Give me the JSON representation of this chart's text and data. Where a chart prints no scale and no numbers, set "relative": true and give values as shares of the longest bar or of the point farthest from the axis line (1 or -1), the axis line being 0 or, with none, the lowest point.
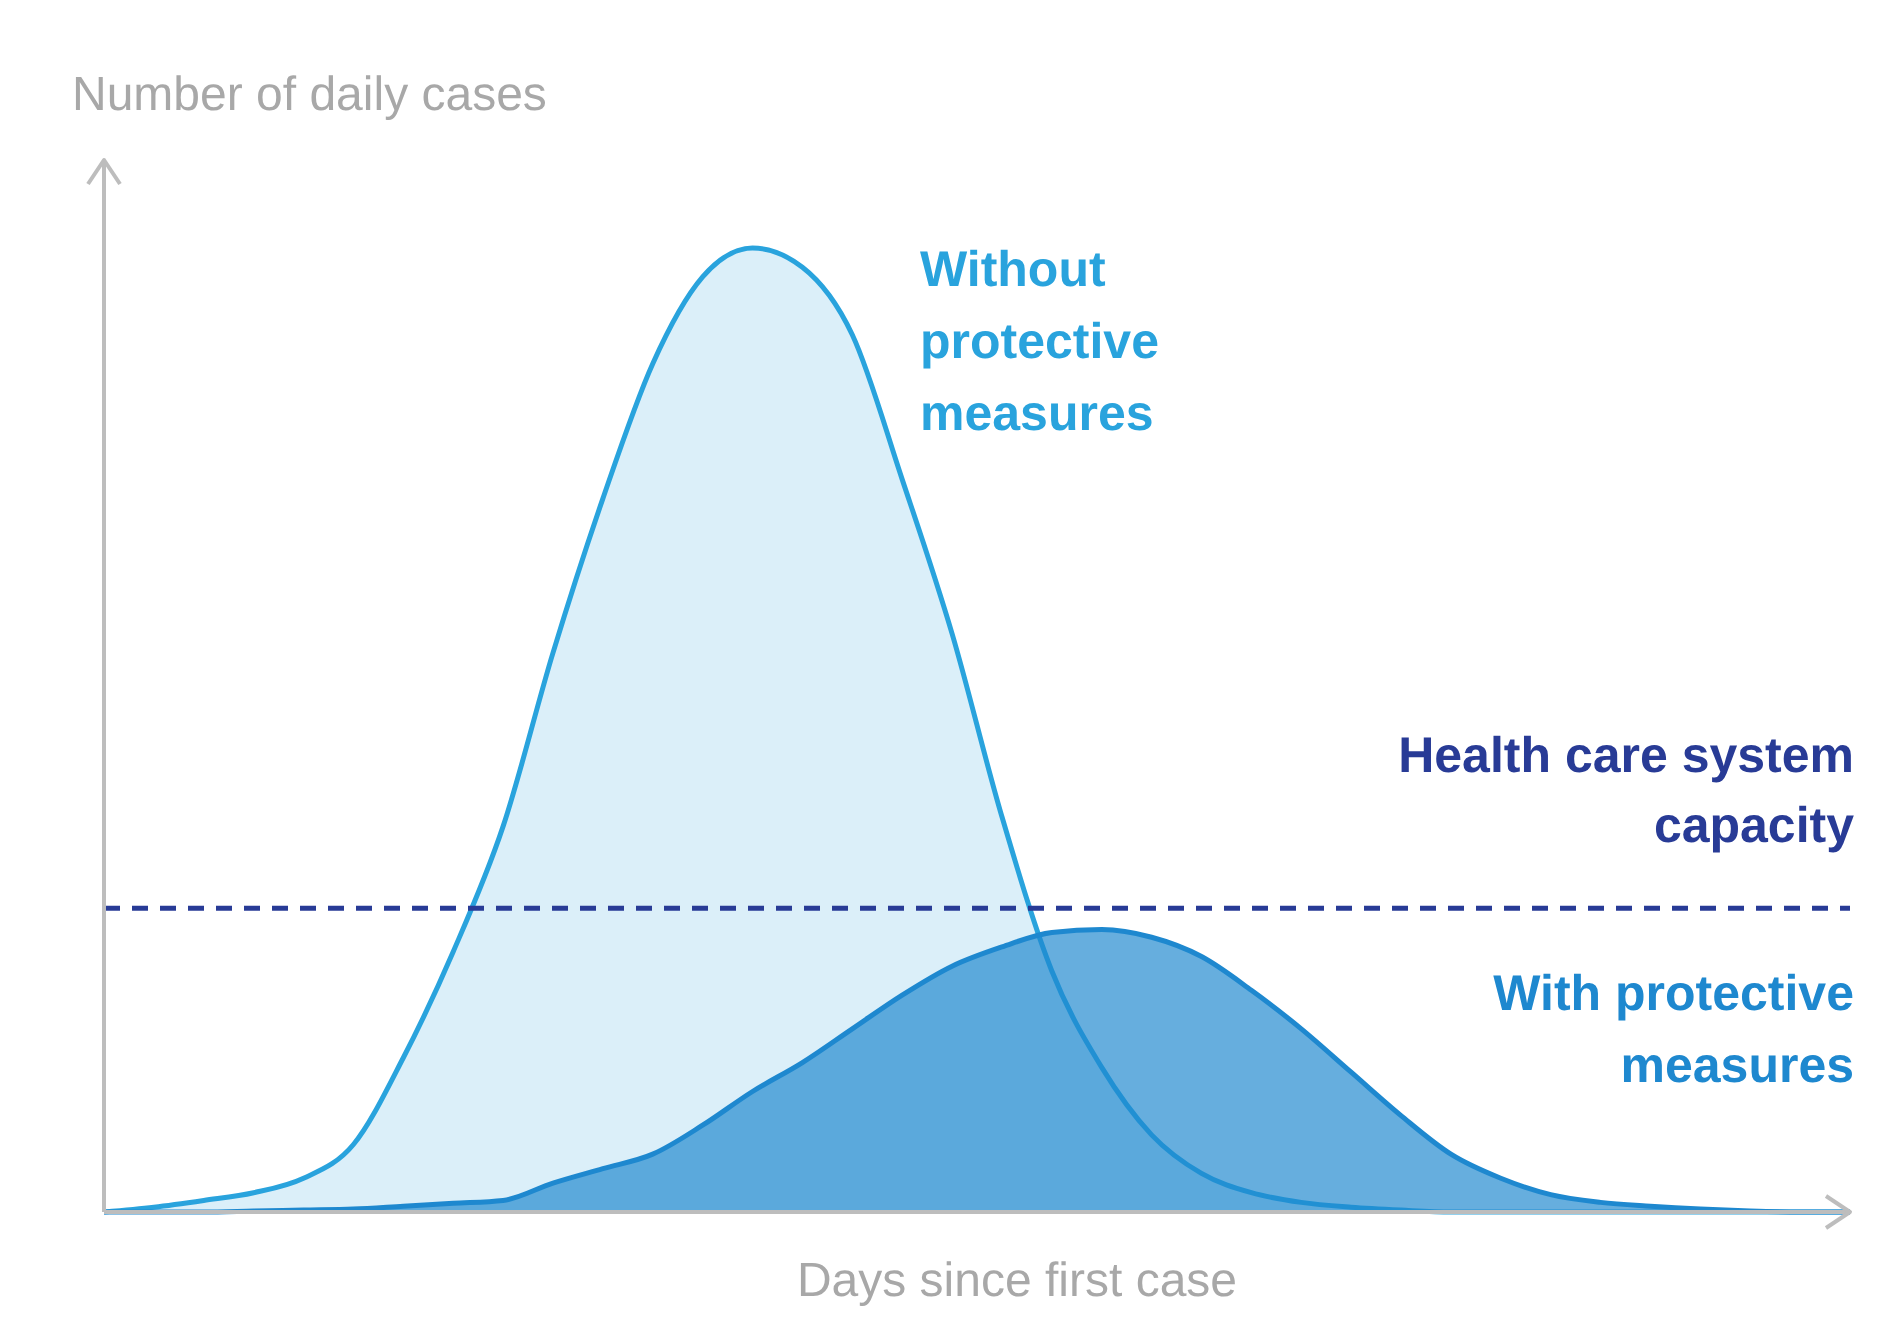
{
  "chart_data": {
    "type": "area",
    "relative": true,
    "xlabel": "Days since first case",
    "ylabel": "Number of daily cases",
    "categories": [
      null,
      null,
      null,
      null,
      null,
      null,
      null,
      null,
      null,
      null,
      null,
      null,
      null,
      null,
      null,
      null,
      null,
      null,
      null,
      null,
      null,
      null,
      null,
      null,
      null,
      null,
      null,
      null,
      null,
      null,
      null,
      null,
      null,
      null,
      null,
      null
    ],
    "series": [
      {
        "name": "Without protective measures",
        "color": "#29a3dd",
        "values": [
          0,
          0.005,
          0.012,
          0.02,
          0.035,
          0.07,
          0.16,
          0.27,
          0.4,
          0.58,
          0.74,
          0.88,
          0.97,
          1,
          0.98,
          0.91,
          0.76,
          0.6,
          0.41,
          0.25,
          0.15,
          0.08,
          0.04,
          0.02,
          0.01,
          0.005,
          0.002,
          0,
          0,
          0,
          0,
          0,
          0,
          0,
          0,
          0
        ]
      },
      {
        "name": "With protective measures",
        "color": "#1e88cf",
        "values": [
          0,
          0,
          0,
          0.001,
          0.002,
          0.003,
          0.006,
          0.009,
          0.012,
          0.03,
          0.045,
          0.06,
          0.09,
          0.125,
          0.155,
          0.19,
          0.225,
          0.255,
          0.275,
          0.29,
          0.293,
          0.285,
          0.265,
          0.23,
          0.19,
          0.145,
          0.1,
          0.06,
          0.035,
          0.018,
          0.01,
          0.006,
          0.003,
          0.001,
          0,
          0
        ]
      }
    ],
    "ref_lines": [
      {
        "axis": "y",
        "value": 0.315,
        "label": "Health care system capacity",
        "color": "#283b96",
        "line_style": "dashed"
      }
    ]
  }
}
